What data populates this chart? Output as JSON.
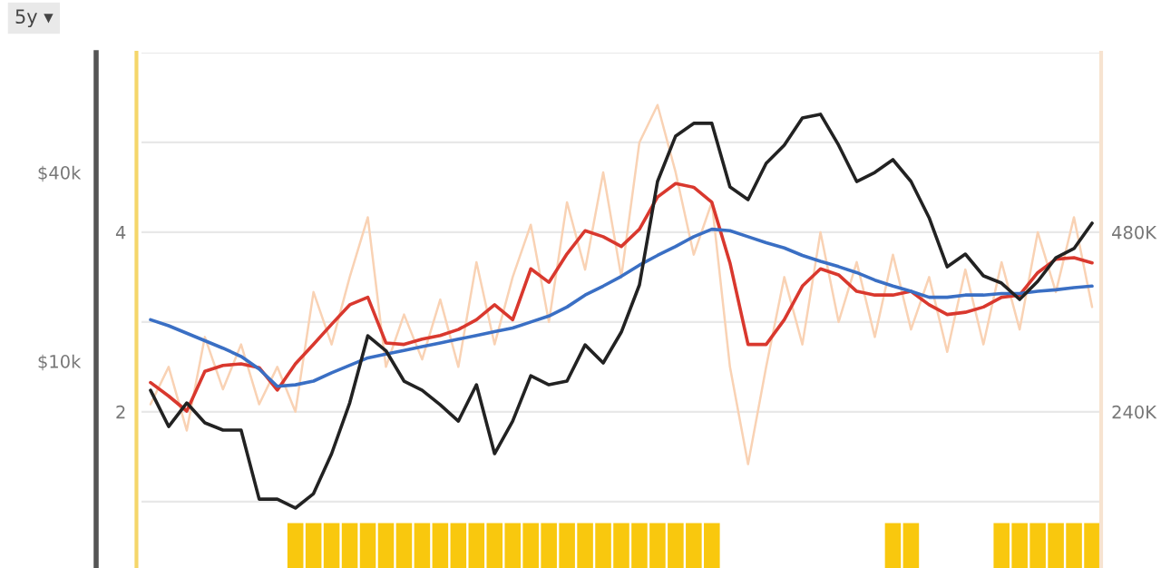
{
  "chart_data": {
    "type": "line",
    "annotations": [
      "5y ▾"
    ],
    "categories": [
      null,
      null,
      null,
      null,
      null,
      null,
      null,
      null,
      null,
      null,
      null,
      null,
      null,
      null,
      null,
      null,
      null,
      null,
      null,
      null,
      null,
      null,
      null,
      null,
      null,
      null,
      null,
      null,
      null,
      null,
      null,
      null,
      null,
      null,
      null,
      null,
      null,
      null,
      null,
      null,
      null,
      null,
      null,
      null,
      null,
      null,
      null,
      null,
      null,
      null,
      null,
      null,
      null
    ],
    "series": [
      {
        "type": "bar",
        "color": "#f9c80e",
        "values": [
          null,
          null,
          null,
          null,
          null,
          null,
          null,
          null,
          0.76,
          0.76,
          0.76,
          0.76,
          0.76,
          0.76,
          0.76,
          0.76,
          0.76,
          0.76,
          0.76,
          0.76,
          0.76,
          0.76,
          0.76,
          0.76,
          0.76,
          0.76,
          0.76,
          0.76,
          0.76,
          0.76,
          0.76,
          0.76,
          null,
          null,
          null,
          null,
          null,
          null,
          null,
          null,
          null,
          0.76,
          0.76,
          null,
          null,
          null,
          null,
          0.76,
          0.76,
          0.76,
          0.76,
          0.76,
          0.76
        ]
      },
      {
        "axis": "y3",
        "color": "#f9d2b4",
        "values": [
          250000,
          300000,
          215000,
          340000,
          270000,
          330000,
          250000,
          300000,
          240000,
          400000,
          330000,
          420000,
          500000,
          300000,
          370000,
          310000,
          390000,
          300000,
          440000,
          330000,
          420000,
          490000,
          360000,
          520000,
          430000,
          560000,
          420000,
          600000,
          650000,
          560000,
          450000,
          520000,
          300000,
          170000,
          300000,
          420000,
          330000,
          480000,
          360000,
          440000,
          340000,
          450000,
          350000,
          420000,
          320000,
          430000,
          330000,
          440000,
          350000,
          480000,
          400000,
          500000,
          380000
        ]
      },
      {
        "axis": "y3",
        "color": "#d9382e",
        "values": [
          279000,
          261000,
          241000,
          294000,
          302000,
          304000,
          299000,
          269000,
          304000,
          330000,
          357000,
          383000,
          393000,
          332000,
          330000,
          337000,
          342000,
          350000,
          363000,
          383000,
          363000,
          431000,
          413000,
          451000,
          482000,
          474000,
          461000,
          484000,
          527000,
          545000,
          540000,
          520000,
          439000,
          330000,
          330000,
          363000,
          408000,
          431000,
          423000,
          401000,
          396000,
          396000,
          401000,
          383000,
          370000,
          373000,
          380000,
          393000,
          396000,
          426000,
          444000,
          446000,
          439000
        ]
      },
      {
        "axis": "y3",
        "color": "#3a6fc4",
        "values": [
          363000,
          355000,
          345000,
          335000,
          325000,
          314000,
          297000,
          274000,
          276000,
          281000,
          292000,
          302000,
          312000,
          317000,
          322000,
          327000,
          332000,
          337000,
          342000,
          347000,
          352000,
          360000,
          368000,
          380000,
          396000,
          408000,
          421000,
          436000,
          449000,
          461000,
          474000,
          484000,
          482000,
          474000,
          466000,
          459000,
          449000,
          441000,
          434000,
          426000,
          416000,
          408000,
          401000,
          393000,
          393000,
          396000,
          396000,
          398000,
          398000,
          401000,
          403000,
          406000,
          408000
        ]
      },
      {
        "axis": "y2",
        "color": "#222222",
        "values": [
          8080,
          6190,
          7360,
          6360,
          6030,
          6030,
          3630,
          3630,
          3400,
          3780,
          5070,
          7360,
          12050,
          10800,
          8640,
          8080,
          7260,
          6440,
          8410,
          5070,
          6440,
          8990,
          8410,
          8640,
          11270,
          9870,
          12380,
          17510,
          37420,
          52240,
          57360,
          57360,
          35970,
          32760,
          42780,
          48870,
          59700,
          61320,
          48870,
          37420,
          40000,
          43920,
          37420,
          28670,
          20000,
          21960,
          18720,
          17740,
          15740,
          17980,
          21380,
          22860,
          27550
        ]
      }
    ],
    "ylim": [
      0.26,
      6
    ],
    "yticks": [
      {
        "value": 1,
        "label": null
      },
      2,
      {
        "value": 3,
        "label": null
      },
      4,
      {
        "value": 5,
        "label": null
      },
      {
        "value": 6,
        "label": null
      }
    ],
    "y2lim": [
      2190,
      96400
    ],
    "y2ticks": [
      {
        "value": 10000,
        "label": "$10k"
      },
      {
        "value": 40000,
        "label": "$40k"
      }
    ],
    "y3lim": [
      31200,
      720000
    ],
    "y3ticks": [
      {
        "value": 240000,
        "label": "240K"
      },
      {
        "value": 480000,
        "label": "480K"
      }
    ],
    "log": "y2",
    "grid": "y",
    "tick_labels": "y"
  }
}
